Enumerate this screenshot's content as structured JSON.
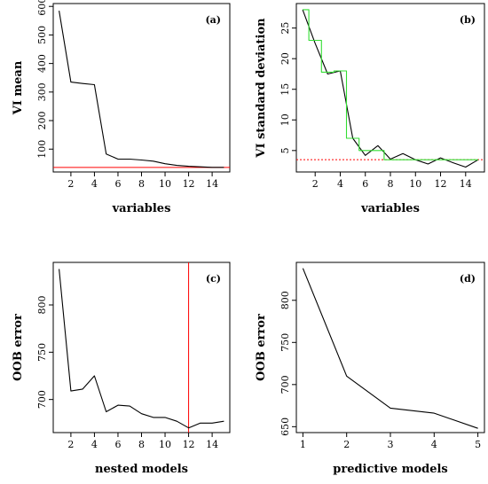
{
  "chart_data": [
    {
      "id": "a",
      "type": "line",
      "panel_label": "(a)",
      "xlabel": "variables",
      "ylabel": "VI mean",
      "xlim": [
        0.5,
        15.5
      ],
      "ylim": [
        20,
        610
      ],
      "xticks": [
        2,
        4,
        6,
        8,
        10,
        12,
        14
      ],
      "yticks": [
        100,
        200,
        300,
        400,
        500,
        600
      ],
      "x": [
        1,
        2,
        3,
        4,
        5,
        6,
        7,
        8,
        9,
        10,
        11,
        12,
        13,
        14,
        15
      ],
      "series": [
        {
          "values": [
            585,
            335,
            330,
            326,
            83,
            65,
            65,
            62,
            58,
            49,
            43,
            40,
            38,
            36,
            36
          ],
          "color": "#000000"
        }
      ],
      "hlines": [
        {
          "y": 36,
          "color": "#ff0000",
          "style": "solid"
        }
      ],
      "vlines": []
    },
    {
      "id": "b",
      "type": "line",
      "panel_label": "(b)",
      "xlabel": "variables",
      "ylabel": "VI standard deviation",
      "xlim": [
        0.5,
        15.5
      ],
      "ylim": [
        1.5,
        29
      ],
      "xticks": [
        2,
        4,
        6,
        8,
        10,
        12,
        14
      ],
      "yticks": [
        5,
        10,
        15,
        20,
        25
      ],
      "x": [
        1,
        2,
        3,
        4,
        5,
        6,
        7,
        8,
        9,
        10,
        11,
        12,
        13,
        14,
        15
      ],
      "series": [
        {
          "values": [
            28,
            22.5,
            17.5,
            18,
            7,
            4.2,
            5.8,
            3.6,
            4.5,
            3.5,
            2.8,
            3.8,
            3,
            2.3,
            3.5
          ],
          "color": "#000000",
          "draw": "line"
        },
        {
          "values": [
            28,
            23,
            17.8,
            18,
            7,
            5,
            5,
            3.5,
            3.5,
            3.5,
            3.5,
            3.5,
            3.5,
            3.5,
            3.5
          ],
          "color": "#33dd33",
          "draw": "step"
        }
      ],
      "hlines": [
        {
          "y": 3.5,
          "color": "#ff0000",
          "style": "dotted"
        }
      ],
      "vlines": []
    },
    {
      "id": "c",
      "type": "line",
      "panel_label": "(c)",
      "xlabel": "nested models",
      "ylabel": "OOB error",
      "xlim": [
        0.5,
        15.5
      ],
      "ylim": [
        665,
        845
      ],
      "xticks": [
        2,
        4,
        6,
        8,
        10,
        12,
        14
      ],
      "yticks": [
        700,
        750,
        800
      ],
      "x": [
        1,
        2,
        3,
        4,
        5,
        6,
        7,
        8,
        9,
        10,
        11,
        12,
        13,
        14,
        15
      ],
      "series": [
        {
          "values": [
            838,
            709,
            711,
            725,
            687,
            694,
            693,
            685,
            681,
            681,
            677,
            670,
            675,
            675,
            677
          ],
          "color": "#000000"
        }
      ],
      "hlines": [],
      "vlines": [
        {
          "x": 12,
          "color": "#ff0000",
          "style": "solid"
        }
      ]
    },
    {
      "id": "d",
      "type": "line",
      "panel_label": "(d)",
      "xlabel": "predictive models",
      "ylabel": "OOB error",
      "xlim": [
        0.85,
        5.15
      ],
      "ylim": [
        643,
        845
      ],
      "xticks": [
        1,
        2,
        3,
        4,
        5
      ],
      "yticks": [
        650,
        700,
        750,
        800
      ],
      "x": [
        1,
        2,
        3,
        4,
        5
      ],
      "series": [
        {
          "values": [
            838,
            710,
            672,
            666,
            648
          ],
          "color": "#000000"
        }
      ],
      "hlines": [],
      "vlines": []
    }
  ]
}
